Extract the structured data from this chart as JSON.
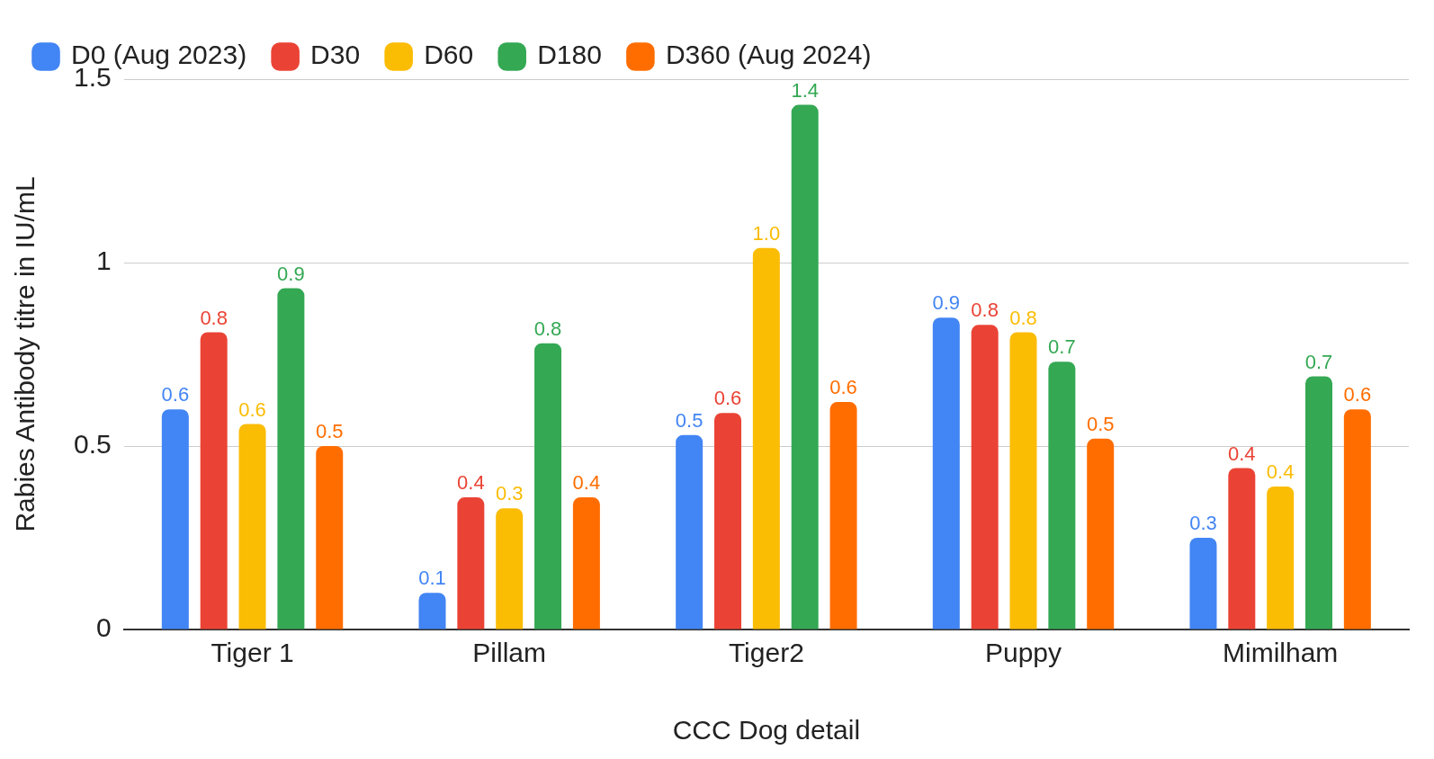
{
  "chart_data": {
    "type": "bar",
    "xlabel": "CCC Dog detail",
    "ylabel": "Rabies Antibody titre in IU/mL",
    "categories": [
      "Tiger 1",
      "Pillam",
      "Tiger2",
      "Puppy",
      "Mimilham"
    ],
    "series": [
      {
        "name": "D0 (Aug 2023)",
        "color": "#4285f4",
        "values": [
          0.6,
          0.1,
          0.53,
          0.85,
          0.25
        ],
        "value_labels": [
          "0.6",
          "0.1",
          "0.5",
          "0.9",
          "0.3"
        ]
      },
      {
        "name": "D30",
        "color": "#ea4335",
        "values": [
          0.81,
          0.36,
          0.59,
          0.83,
          0.44
        ],
        "value_labels": [
          "0.8",
          "0.4",
          "0.6",
          "0.8",
          "0.4"
        ]
      },
      {
        "name": "D60",
        "color": "#fbbc04",
        "values": [
          0.56,
          0.33,
          1.04,
          0.81,
          0.39
        ],
        "value_labels": [
          "0.6",
          "0.3",
          "1.0",
          "0.8",
          "0.4"
        ]
      },
      {
        "name": "D180",
        "color": "#34a853",
        "values": [
          0.93,
          0.78,
          1.43,
          0.73,
          0.69
        ],
        "value_labels": [
          "0.9",
          "0.8",
          "1.4",
          "0.7",
          "0.7"
        ]
      },
      {
        "name": "D360 (Aug 2024)",
        "color": "#ff6d01",
        "values": [
          0.5,
          0.36,
          0.62,
          0.52,
          0.6
        ],
        "value_labels": [
          "0.5",
          "0.4",
          "0.6",
          "0.5",
          "0.6"
        ]
      }
    ],
    "ylim": [
      0,
      1.5
    ],
    "yticks": [
      0,
      0.5,
      1,
      1.5
    ],
    "grid": "y",
    "legend": "top left"
  }
}
